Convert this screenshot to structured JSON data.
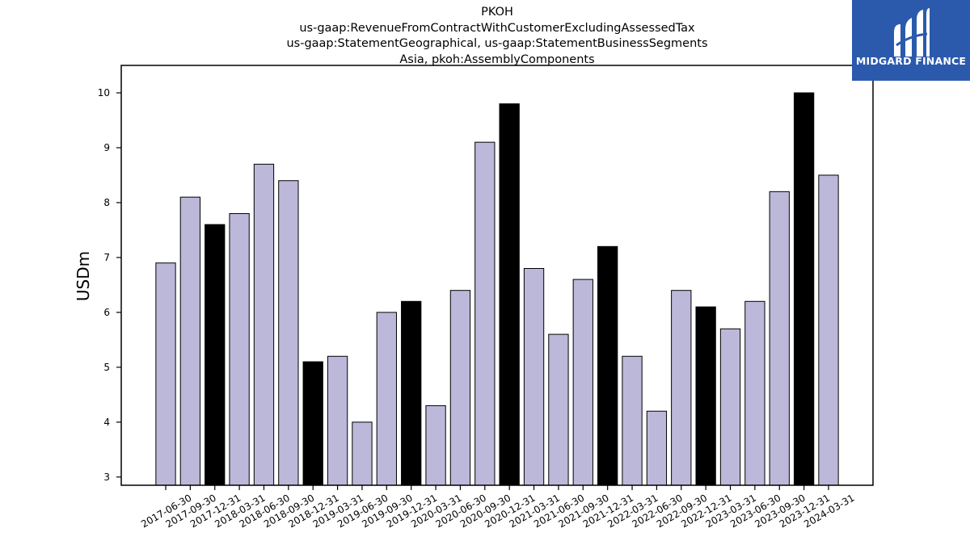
{
  "chart_data": {
    "type": "bar",
    "title": "PKOH",
    "subtitle_lines": [
      "us-gaap:RevenueFromContractWithCustomerExcludingAssessedTax",
      "us-gaap:StatementGeographical, us-gaap:StatementBusinessSegments",
      "Asia, pkoh:AssemblyComponents"
    ],
    "xlabel": "",
    "ylabel": "USDm",
    "ylim": [
      2.85,
      10.5
    ],
    "yticks": [
      "3",
      "4",
      "5",
      "6",
      "7",
      "8",
      "9",
      "10"
    ],
    "grid": false,
    "categories": [
      "2017-06-30",
      "2017-09-30",
      "2017-12-31",
      "2018-03-31",
      "2018-06-30",
      "2018-09-30",
      "2018-12-31",
      "2019-03-31",
      "2019-06-30",
      "2019-09-30",
      "2019-12-31",
      "2020-03-31",
      "2020-06-30",
      "2020-09-30",
      "2020-12-31",
      "2021-03-31",
      "2021-06-30",
      "2021-09-30",
      "2021-12-31",
      "2022-03-31",
      "2022-06-30",
      "2022-09-30",
      "2022-12-31",
      "2023-03-31",
      "2023-06-30",
      "2023-09-30",
      "2023-12-31",
      "2024-03-31"
    ],
    "values": [
      6.9,
      8.1,
      7.6,
      7.8,
      8.7,
      8.4,
      5.1,
      5.2,
      4.0,
      6.0,
      6.2,
      4.3,
      6.4,
      9.1,
      9.8,
      6.8,
      5.6,
      6.6,
      7.2,
      5.2,
      4.2,
      6.4,
      6.1,
      5.7,
      6.2,
      8.2,
      10.0,
      8.5
    ],
    "highlighted": [
      false,
      false,
      true,
      false,
      false,
      false,
      true,
      false,
      false,
      false,
      true,
      false,
      false,
      false,
      true,
      false,
      false,
      false,
      true,
      false,
      false,
      false,
      true,
      false,
      false,
      false,
      true,
      false
    ],
    "colors": {
      "bar": "#bcb8da",
      "highlight": "#000000",
      "edge": "#000000"
    }
  },
  "logo": {
    "text": "MIDGARD FINANCE",
    "color": "#2b5aad"
  }
}
